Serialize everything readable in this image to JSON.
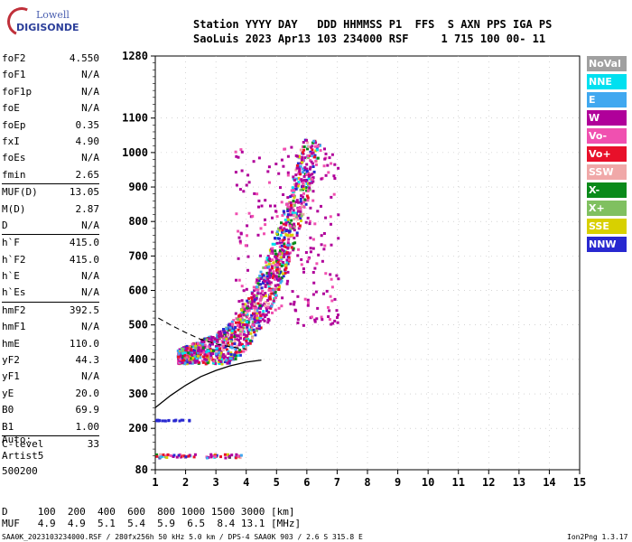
{
  "logo": {
    "brand": "Lowell",
    "product": "DIGISONDE"
  },
  "header": {
    "line1": "Station YYYY DAY   DDD HHMMSS P1  FFS  S AXN PPS IGA PS",
    "line2": "SaoLuis 2023 Apr13 103 234000 RSF     1 715 100 00- 11"
  },
  "params": {
    "group1": [
      {
        "k": "foF2",
        "v": "4.550"
      },
      {
        "k": "foF1",
        "v": "N/A"
      },
      {
        "k": "foF1p",
        "v": "N/A"
      },
      {
        "k": "foE",
        "v": "N/A"
      },
      {
        "k": "foEp",
        "v": "0.35"
      },
      {
        "k": "fxI",
        "v": "4.90"
      },
      {
        "k": "foEs",
        "v": "N/A"
      },
      {
        "k": "fmin",
        "v": "2.65"
      }
    ],
    "group2": [
      {
        "k": "MUF(D)",
        "v": "13.05"
      },
      {
        "k": "M(D)",
        "v": "2.87"
      },
      {
        "k": "D",
        "v": "N/A"
      }
    ],
    "group3": [
      {
        "k": "h`F",
        "v": "415.0"
      },
      {
        "k": "h`F2",
        "v": "415.0"
      },
      {
        "k": "h`E",
        "v": "N/A"
      },
      {
        "k": "h`Es",
        "v": "N/A"
      }
    ],
    "group4": [
      {
        "k": "hmF2",
        "v": "392.5"
      },
      {
        "k": "hmF1",
        "v": "N/A"
      },
      {
        "k": "hmE",
        "v": "110.0"
      },
      {
        "k": "yF2",
        "v": "44.3"
      },
      {
        "k": "yF1",
        "v": "N/A"
      },
      {
        "k": "yE",
        "v": "20.0"
      },
      {
        "k": "B0",
        "v": "69.9"
      },
      {
        "k": "B1",
        "v": "1.00"
      }
    ],
    "group5": [
      {
        "k": "C-level",
        "v": "33"
      }
    ]
  },
  "auto": {
    "line1": "Auto:",
    "line2": "Artist5",
    "line3": "500200"
  },
  "legend": [
    {
      "label": "NoVal",
      "color": "#a0a0a0"
    },
    {
      "label": "NNE",
      "color": "#00e0f0"
    },
    {
      "label": "E",
      "color": "#40a8f0"
    },
    {
      "label": "W",
      "color": "#b0009a"
    },
    {
      "label": "Vo-",
      "color": "#f050b0"
    },
    {
      "label": "Vo+",
      "color": "#e8102a"
    },
    {
      "label": "SSW",
      "color": "#f0a8a8"
    },
    {
      "label": "X-",
      "color": "#0a8a1a"
    },
    {
      "label": "X+",
      "color": "#80c060"
    },
    {
      "label": "SSE",
      "color": "#d8d000"
    },
    {
      "label": "NNW",
      "color": "#2828d0"
    }
  ],
  "footer": {
    "row1": "D     100  200  400  600  800 1000 1500 3000 [km]",
    "row2": "MUF   4.9  4.9  5.1  5.4  5.9  6.5  8.4 13.1 [MHz]",
    "file": "SAA0K_2023103234000.RSF / 280fx256h 50 kHz 5.0 km / DPS-4 SAA0K 903 / 2.6 S 315.8 E",
    "version": "Ion2Png 1.3.17"
  },
  "chart_data": {
    "type": "scatter",
    "title": "",
    "xlabel": "",
    "ylabel": "",
    "xlim": [
      1,
      15
    ],
    "ylim": [
      80,
      1280
    ],
    "xticks": [
      1,
      2,
      3,
      4,
      5,
      6,
      7,
      8,
      9,
      10,
      11,
      12,
      13,
      14,
      15
    ],
    "yticks": [
      80,
      200,
      300,
      400,
      500,
      600,
      700,
      800,
      900,
      1000,
      1100,
      1280
    ],
    "grid": true,
    "legend_position": "right",
    "traces": [
      {
        "name": "",
        "points": [
          [
            1.0,
            260
          ],
          [
            1.5,
            295
          ],
          [
            2.0,
            325
          ],
          [
            2.5,
            350
          ],
          [
            3.0,
            368
          ],
          [
            3.5,
            382
          ],
          [
            4.0,
            392
          ],
          [
            4.5,
            398
          ]
        ]
      },
      {
        "name": "",
        "points": [
          [
            1.1,
            520
          ],
          [
            1.5,
            500
          ],
          [
            2.0,
            478
          ],
          [
            2.5,
            458
          ],
          [
            3.0,
            445
          ],
          [
            3.5,
            436
          ],
          [
            4.0,
            430
          ]
        ]
      }
    ]
  }
}
